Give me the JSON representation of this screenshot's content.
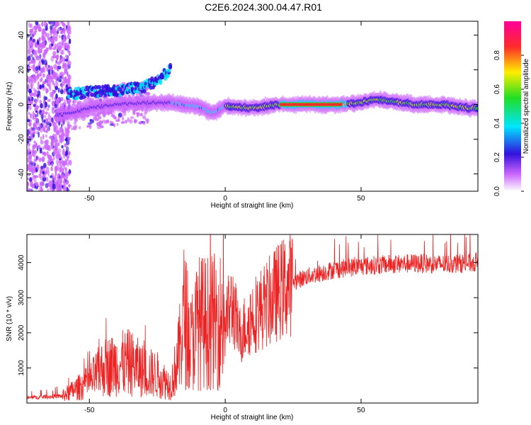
{
  "title": "C2E6.2024.300.04.47.R01",
  "chart_data": [
    {
      "type": "heatmap",
      "xlabel": "Height of straight line (km)",
      "ylabel": "Frequency (Hz)",
      "xlim": [
        -73,
        93
      ],
      "ylim": [
        -50,
        48
      ],
      "xticks": [
        -50,
        0,
        50
      ],
      "yticks": [
        -40,
        -20,
        0,
        20,
        40
      ],
      "grid": false,
      "colorbar": {
        "label": "Normalized spectral amplitude",
        "range": [
          0,
          1
        ],
        "ticks": [
          0.0,
          0.2,
          0.4,
          0.6,
          0.8
        ],
        "colors": [
          "#ffffff",
          "#cc66ff",
          "#3311dd",
          "#00e5ff",
          "#22dd22",
          "#ffee00",
          "#ff2a2a",
          "#ff0099"
        ]
      },
      "ridge": {
        "x": [
          -60,
          -50,
          -40,
          -30,
          -20,
          -10,
          -5,
          0,
          10,
          20,
          30,
          40,
          50,
          55,
          60,
          70,
          80,
          90
        ],
        "y": [
          -6,
          -2,
          0,
          1,
          1,
          -1,
          -5,
          -1,
          -2,
          0,
          0,
          0,
          1,
          3,
          2,
          0,
          0,
          -2
        ]
      },
      "upper_branch": {
        "x": [
          -60,
          -50,
          -40,
          -30,
          -25,
          -20
        ],
        "y": [
          6,
          7,
          8,
          10,
          14,
          20
        ]
      }
    },
    {
      "type": "line",
      "xlabel": "Height of straight line (km)",
      "ylabel": "SNR (10 * v/v)",
      "xlim": [
        -73,
        93
      ],
      "ylim": [
        0,
        4800
      ],
      "xticks": [
        -50,
        0,
        50
      ],
      "yticks": [
        1000,
        2000,
        3000,
        4000
      ],
      "color": "#ee2222",
      "grid": false,
      "envelope": {
        "x": [
          -73,
          -60,
          -50,
          -45,
          -40,
          -35,
          -30,
          -25,
          -20,
          -17,
          -15,
          -13,
          -10,
          -5,
          0,
          3,
          5,
          10,
          15,
          20,
          25,
          30,
          40,
          50,
          60,
          70,
          80,
          93
        ],
        "y": [
          150,
          200,
          600,
          1000,
          1100,
          1150,
          900,
          800,
          500,
          1400,
          2600,
          1600,
          2300,
          2300,
          2400,
          2800,
          1900,
          2500,
          2800,
          3200,
          3450,
          3600,
          3800,
          3900,
          3950,
          3980,
          3950,
          4000
        ]
      }
    }
  ]
}
